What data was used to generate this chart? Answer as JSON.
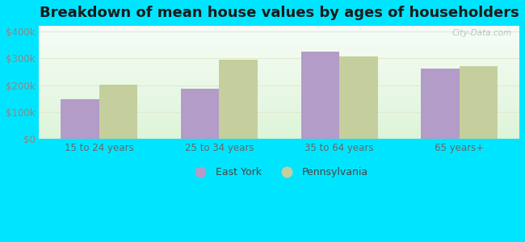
{
  "title": "Breakdown of mean house values by ages of householders",
  "categories": [
    "15 to 24 years",
    "25 to 34 years",
    "35 to 64 years",
    "65 years+"
  ],
  "east_york": [
    148000,
    188000,
    325000,
    260000
  ],
  "pennsylvania": [
    203000,
    293000,
    305000,
    270000
  ],
  "bar_color_ey": "#b39cc8",
  "bar_color_pa": "#c5cf9e",
  "ylim": [
    0,
    420000
  ],
  "yticks": [
    0,
    100000,
    200000,
    300000,
    400000
  ],
  "ytick_labels": [
    "$0",
    "$100k",
    "$200k",
    "$300k",
    "$400k"
  ],
  "outer_color": "#00e5ff",
  "legend_ey": "East York",
  "legend_pa": "Pennsylvania",
  "watermark": "City-Data.com",
  "bar_width": 0.32,
  "title_fontsize": 13,
  "grid_color": "#e0ead0",
  "tick_color": "#888888",
  "xtick_color": "#666666"
}
